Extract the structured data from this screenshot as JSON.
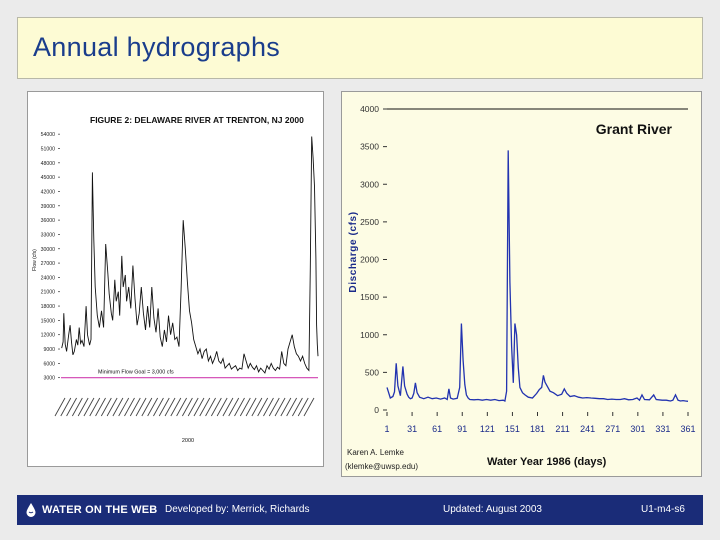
{
  "slide": {
    "title": "Annual hydrographs"
  },
  "footer": {
    "logo_text": "WATER ON THE WEB",
    "developed_by": "Developed by: Merrick, Richards",
    "updated": "Updated: August 2003",
    "slide_id": "U1-m4-s6"
  },
  "chart_data": [
    {
      "type": "line",
      "title": "FIGURE 2: DELAWARE RIVER AT TRENTON, NJ 2000",
      "xlabel": "2000",
      "ylabel": "Flow (cfs)",
      "y_ticks": [
        "54000",
        "51000",
        "48000",
        "45000",
        "42000",
        "39000",
        "36000",
        "33000",
        "30000",
        "27000",
        "24000",
        "21000",
        "18000",
        "15000",
        "12000",
        "9000",
        "6000",
        "3000"
      ],
      "ylim": [
        0,
        55500
      ],
      "annotation": "Minimum Flow Goal = 3,000 cfs",
      "goal_value": 3000,
      "goal_color": "#d040b0",
      "series": [
        {
          "values": [
            [
              1,
              9200
            ],
            [
              3,
              10500
            ],
            [
              4,
              16500
            ],
            [
              6,
              10000
            ],
            [
              8,
              8500
            ],
            [
              11,
              12000
            ],
            [
              13,
              14000
            ],
            [
              15,
              10500
            ],
            [
              17,
              7800
            ],
            [
              19,
              8500
            ],
            [
              22,
              11000
            ],
            [
              24,
              9800
            ],
            [
              26,
              13500
            ],
            [
              28,
              10200
            ],
            [
              30,
              10800
            ],
            [
              33,
              9500
            ],
            [
              36,
              18000
            ],
            [
              38,
              12000
            ],
            [
              41,
              9800
            ],
            [
              43,
              11000
            ],
            [
              45,
              46000
            ],
            [
              47,
              32000
            ],
            [
              49,
              22000
            ],
            [
              52,
              16000
            ],
            [
              55,
              13500
            ],
            [
              58,
              17000
            ],
            [
              61,
              13500
            ],
            [
              64,
              31000
            ],
            [
              67,
              25000
            ],
            [
              69,
              20500
            ],
            [
              72,
              16500
            ],
            [
              74,
              15000
            ],
            [
              77,
              23500
            ],
            [
              79,
              19000
            ],
            [
              82,
              21000
            ],
            [
              84,
              16000
            ],
            [
              87,
              28500
            ],
            [
              89,
              22000
            ],
            [
              92,
              24500
            ],
            [
              94,
              19000
            ],
            [
              97,
              22000
            ],
            [
              100,
              17500
            ],
            [
              103,
              26500
            ],
            [
              106,
              19500
            ],
            [
              109,
              14000
            ],
            [
              112,
              16500
            ],
            [
              115,
              22000
            ],
            [
              118,
              16500
            ],
            [
              121,
              13000
            ],
            [
              124,
              18000
            ],
            [
              127,
              13500
            ],
            [
              130,
              22000
            ],
            [
              133,
              15500
            ],
            [
              136,
              12500
            ],
            [
              139,
              17500
            ],
            [
              142,
              11500
            ],
            [
              145,
              9500
            ],
            [
              148,
              13000
            ],
            [
              151,
              10500
            ],
            [
              154,
              16000
            ],
            [
              157,
              12000
            ],
            [
              160,
              14500
            ],
            [
              163,
              11000
            ],
            [
              166,
              11500
            ],
            [
              169,
              9500
            ],
            [
              172,
              21500
            ],
            [
              175,
              36000
            ],
            [
              178,
              30000
            ],
            [
              181,
              23000
            ],
            [
              184,
              17000
            ],
            [
              187,
              14500
            ],
            [
              190,
              11000
            ],
            [
              193,
              9500
            ],
            [
              196,
              8000
            ],
            [
              199,
              9000
            ],
            [
              202,
              7000
            ],
            [
              205,
              8500
            ],
            [
              208,
              9000
            ],
            [
              211,
              6500
            ],
            [
              214,
              7500
            ],
            [
              217,
              6000
            ],
            [
              220,
              7000
            ],
            [
              223,
              8500
            ],
            [
              226,
              6500
            ],
            [
              229,
              6000
            ],
            [
              232,
              7000
            ],
            [
              235,
              5000
            ],
            [
              238,
              5500
            ],
            [
              241,
              6000
            ],
            [
              244,
              4800
            ],
            [
              247,
              5200
            ],
            [
              250,
              5500
            ],
            [
              253,
              4500
            ],
            [
              256,
              5000
            ],
            [
              259,
              4800
            ],
            [
              262,
              8000
            ],
            [
              265,
              6500
            ],
            [
              268,
              5000
            ],
            [
              271,
              6000
            ],
            [
              274,
              5200
            ],
            [
              277,
              4700
            ],
            [
              280,
              5500
            ],
            [
              283,
              4200
            ],
            [
              286,
              5000
            ],
            [
              289,
              4500
            ],
            [
              292,
              4000
            ],
            [
              295,
              5500
            ],
            [
              298,
              4800
            ],
            [
              301,
              6000
            ],
            [
              304,
              5000
            ],
            [
              307,
              4500
            ],
            [
              310,
              5200
            ],
            [
              313,
              4800
            ],
            [
              316,
              8500
            ],
            [
              319,
              6000
            ],
            [
              322,
              5500
            ],
            [
              325,
              9000
            ],
            [
              328,
              10500
            ],
            [
              331,
              12000
            ],
            [
              334,
              9500
            ],
            [
              337,
              8000
            ],
            [
              340,
              7500
            ],
            [
              343,
              6500
            ],
            [
              346,
              7500
            ],
            [
              349,
              6000
            ],
            [
              352,
              5000
            ],
            [
              355,
              4500
            ],
            [
              357,
              26000
            ],
            [
              359,
              53500
            ],
            [
              361,
              49000
            ],
            [
              363,
              43000
            ],
            [
              365,
              28000
            ],
            [
              366,
              14000
            ],
            [
              367,
              10000
            ],
            [
              368,
              7500
            ]
          ]
        }
      ]
    },
    {
      "type": "line",
      "title": "Grant River",
      "xlabel": "Water Year 1986 (days)",
      "ylabel": "Discharge (cfs)",
      "x_ticks": [
        "1",
        "31",
        "61",
        "91",
        "121",
        "151",
        "181",
        "211",
        "241",
        "271",
        "301",
        "331",
        "361"
      ],
      "y_ticks": [
        "4000",
        "3500",
        "3000",
        "2500",
        "2000",
        "1500",
        "1000",
        "500",
        "0"
      ],
      "xlim": [
        1,
        361
      ],
      "ylim": [
        0,
        4000
      ],
      "credit": [
        "Karen A. Lemke",
        "(klemke@uwsp.edu)"
      ],
      "series": [
        {
          "values": [
            [
              1,
              300
            ],
            [
              5,
              160
            ],
            [
              8,
              180
            ],
            [
              10,
              240
            ],
            [
              12,
              620
            ],
            [
              14,
              320
            ],
            [
              17,
              190
            ],
            [
              20,
              580
            ],
            [
              22,
              320
            ],
            [
              25,
              210
            ],
            [
              27,
              170
            ],
            [
              29,
              150
            ],
            [
              31,
              160
            ],
            [
              33,
              220
            ],
            [
              35,
              360
            ],
            [
              37,
              230
            ],
            [
              40,
              170
            ],
            [
              45,
              150
            ],
            [
              50,
              170
            ],
            [
              55,
              150
            ],
            [
              60,
              160
            ],
            [
              65,
              145
            ],
            [
              70,
              160
            ],
            [
              73,
              140
            ],
            [
              75,
              280
            ],
            [
              77,
              160
            ],
            [
              80,
              145
            ],
            [
              85,
              155
            ],
            [
              88,
              300
            ],
            [
              90,
              1150
            ],
            [
              92,
              660
            ],
            [
              94,
              340
            ],
            [
              96,
              200
            ],
            [
              98,
              160
            ],
            [
              100,
              140
            ],
            [
              105,
              135
            ],
            [
              110,
              140
            ],
            [
              115,
              130
            ],
            [
              120,
              140
            ],
            [
              125,
              130
            ],
            [
              130,
              140
            ],
            [
              135,
              125
            ],
            [
              140,
              130
            ],
            [
              142,
              120
            ],
            [
              144,
              250
            ],
            [
              146,
              3450
            ],
            [
              148,
              1700
            ],
            [
              150,
              850
            ],
            [
              152,
              360
            ],
            [
              154,
              1150
            ],
            [
              156,
              1000
            ],
            [
              158,
              560
            ],
            [
              160,
              300
            ],
            [
              163,
              230
            ],
            [
              166,
              200
            ],
            [
              170,
              170
            ],
            [
              175,
              160
            ],
            [
              180,
              220
            ],
            [
              183,
              270
            ],
            [
              186,
              300
            ],
            [
              188,
              460
            ],
            [
              190,
              370
            ],
            [
              193,
              310
            ],
            [
              196,
              250
            ],
            [
              200,
              230
            ],
            [
              205,
              190
            ],
            [
              210,
              210
            ],
            [
              213,
              280
            ],
            [
              216,
              220
            ],
            [
              220,
              180
            ],
            [
              225,
              190
            ],
            [
              230,
              170
            ],
            [
              235,
              160
            ],
            [
              240,
              165
            ],
            [
              245,
              160
            ],
            [
              250,
              155
            ],
            [
              255,
              150
            ],
            [
              260,
              150
            ],
            [
              265,
              140
            ],
            [
              270,
              145
            ],
            [
              275,
              140
            ],
            [
              280,
              140
            ],
            [
              285,
              150
            ],
            [
              290,
              135
            ],
            [
              295,
              140
            ],
            [
              300,
              160
            ],
            [
              303,
              130
            ],
            [
              306,
              200
            ],
            [
              309,
              140
            ],
            [
              315,
              135
            ],
            [
              320,
              200
            ],
            [
              323,
              140
            ],
            [
              330,
              130
            ],
            [
              335,
              130
            ],
            [
              340,
              120
            ],
            [
              343,
              130
            ],
            [
              346,
              200
            ],
            [
              349,
              130
            ],
            [
              352,
              120
            ],
            [
              355,
              125
            ],
            [
              358,
              120
            ],
            [
              361,
              115
            ]
          ]
        }
      ]
    }
  ]
}
